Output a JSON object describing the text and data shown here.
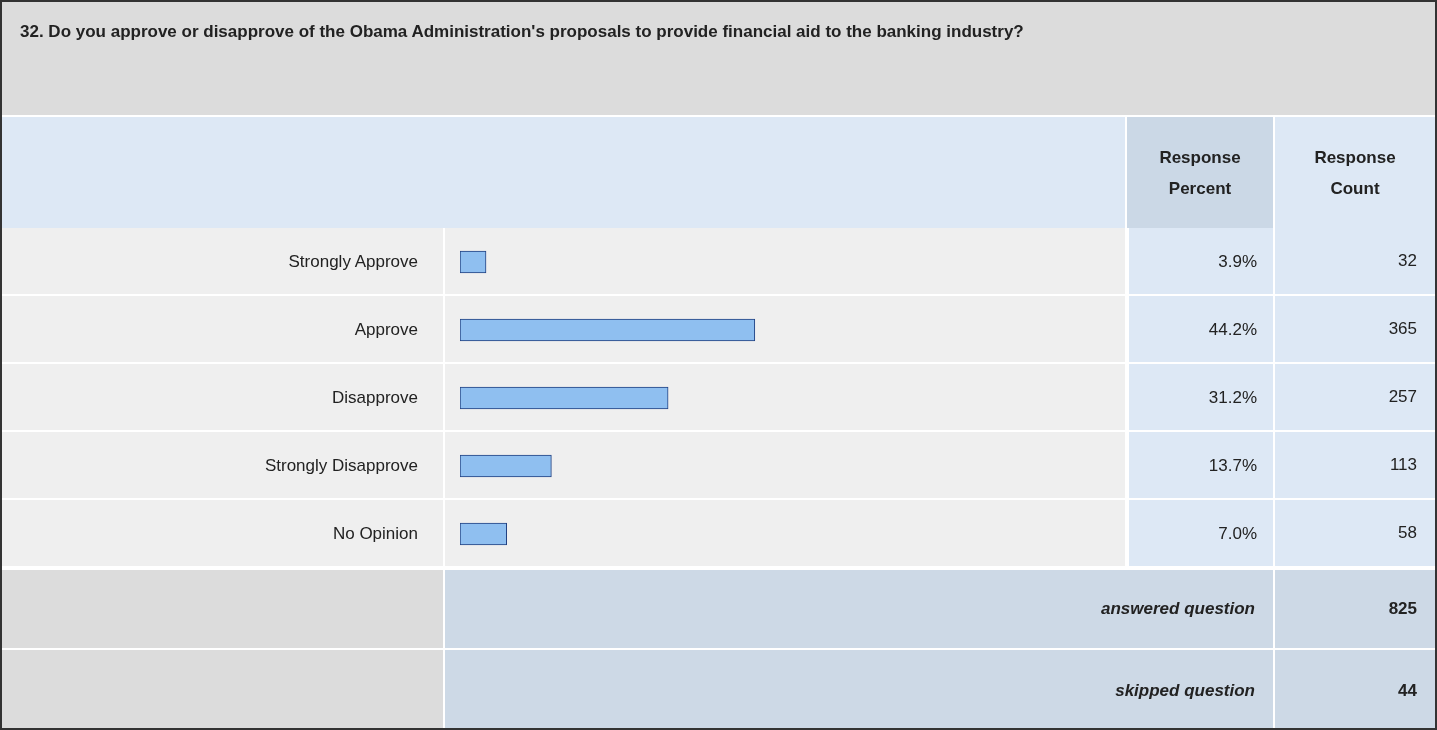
{
  "chart_data": {
    "type": "bar",
    "orientation": "horizontal",
    "title": "32. Do you approve or disapprove of the Obama Administration's proposals to provide financial aid to the banking industry?",
    "categories": [
      "Strongly Approve",
      "Approve",
      "Disapprove",
      "Strongly Disapprove",
      "No Opinion"
    ],
    "values": [
      3.9,
      44.2,
      31.2,
      13.7,
      7.0
    ],
    "value_labels": [
      "3.9%",
      "44.2%",
      "31.2%",
      "13.7%",
      "7.0%"
    ],
    "color": "#8fbff0",
    "xlim": [
      0,
      100
    ],
    "annotations": [
      "Response Percent",
      "Response Count",
      "32",
      "365",
      "257",
      "113",
      "58",
      "answered question",
      "825",
      "skipped question",
      "44"
    ]
  }
}
